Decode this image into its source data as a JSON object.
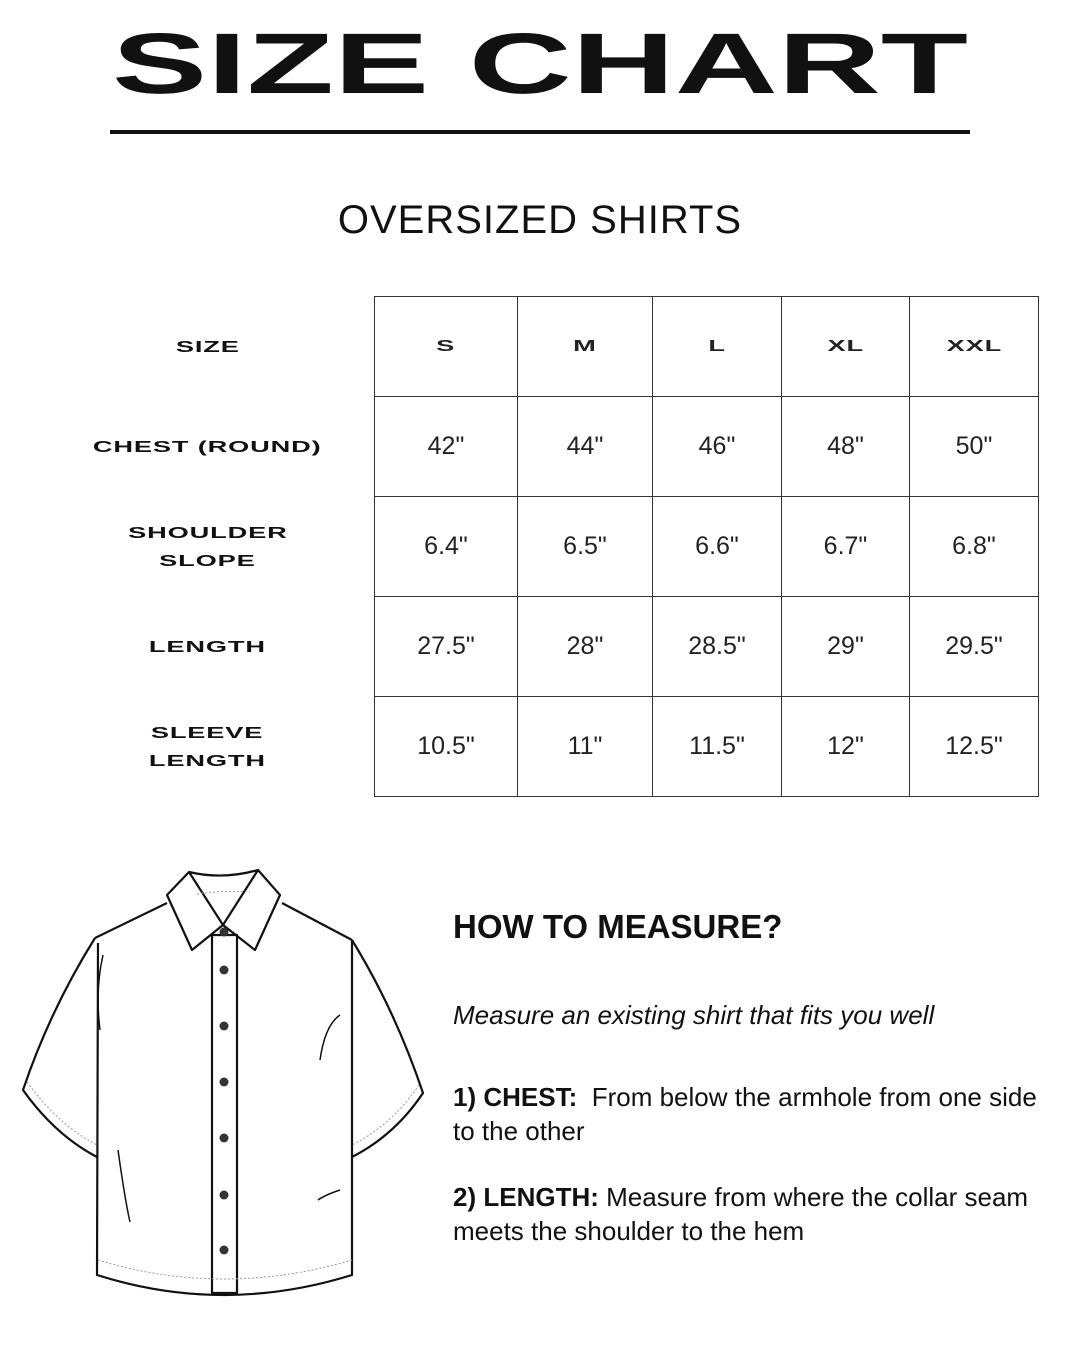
{
  "title": "SIZE CHART",
  "subtitle": "OVERSIZED SHIRTS",
  "table": {
    "header_label": "SIZE",
    "sizes": [
      "S",
      "M",
      "L",
      "XL",
      "XXL"
    ],
    "rows": [
      {
        "label_lines": [
          "CHEST (ROUND)"
        ],
        "values": [
          "42\"",
          "44\"",
          "46\"",
          "48\"",
          "50\""
        ]
      },
      {
        "label_lines": [
          "SHOULDER",
          "SLOPE"
        ],
        "values": [
          "6.4\"",
          "6.5\"",
          "6.6\"",
          "6.7\"",
          "6.8\""
        ]
      },
      {
        "label_lines": [
          "LENGTH"
        ],
        "values": [
          "27.5\"",
          "28\"",
          "28.5\"",
          "29\"",
          "29.5\""
        ]
      },
      {
        "label_lines": [
          "SLEEVE",
          "LENGTH"
        ],
        "values": [
          "10.5\"",
          "11\"",
          "11.5\"",
          "12\"",
          "12.5\""
        ]
      }
    ]
  },
  "illustration": "shirt-flat-sketch",
  "how_to": {
    "heading": "HOW TO MEASURE?",
    "intro": "Measure an existing shirt that fits you well",
    "steps": [
      {
        "label": "1) CHEST:",
        "text": "  From below the armhole from one side to the other"
      },
      {
        "label": "2) LENGTH:",
        "text": " Measure from where the collar seam meets the shoulder to the hem"
      }
    ]
  }
}
